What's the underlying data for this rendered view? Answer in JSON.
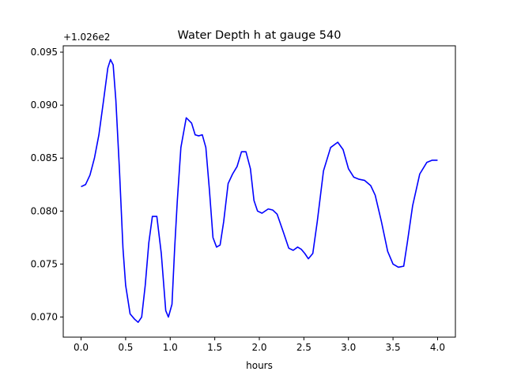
{
  "chart_data": {
    "type": "line",
    "title": "Water Depth h at gauge 540",
    "xlabel": "hours",
    "ylabel": "",
    "y_offset_label": "+1.026e2",
    "y_offset": 102.6,
    "xlim": [
      -0.2,
      4.2
    ],
    "ylim": [
      0.0681,
      0.0956
    ],
    "xticks": [
      0.0,
      0.5,
      1.0,
      1.5,
      2.0,
      2.5,
      3.0,
      3.5,
      4.0
    ],
    "xtick_labels": [
      "0.0",
      "0.5",
      "1.0",
      "1.5",
      "2.0",
      "2.5",
      "3.0",
      "3.5",
      "4.0"
    ],
    "yticks": [
      0.07,
      0.075,
      0.08,
      0.085,
      0.09,
      0.095
    ],
    "ytick_labels": [
      "0.070",
      "0.075",
      "0.080",
      "0.085",
      "0.090",
      "0.095"
    ],
    "grid": false,
    "series_color": "#0000ff",
    "series": [
      {
        "x": [
          0.0,
          0.05,
          0.1,
          0.15,
          0.2,
          0.25,
          0.3,
          0.33,
          0.36,
          0.39,
          0.43,
          0.47,
          0.5,
          0.55,
          0.6,
          0.64,
          0.68,
          0.72,
          0.76,
          0.8,
          0.85,
          0.9,
          0.95,
          0.98,
          1.02,
          1.05,
          1.08,
          1.12,
          1.18,
          1.24,
          1.28,
          1.32,
          1.36,
          1.4,
          1.44,
          1.48,
          1.52,
          1.56,
          1.6,
          1.65,
          1.7,
          1.75,
          1.8,
          1.85,
          1.9,
          1.94,
          1.98,
          2.03,
          2.1,
          2.15,
          2.2,
          2.27,
          2.33,
          2.38,
          2.43,
          2.47,
          2.51,
          2.55,
          2.6,
          2.65,
          2.72,
          2.8,
          2.88,
          2.94,
          3.0,
          3.06,
          3.12,
          3.18,
          3.25,
          3.3,
          3.37,
          3.44,
          3.5,
          3.56,
          3.62,
          3.66,
          3.72,
          3.8,
          3.88,
          3.94,
          4.0
        ],
        "y": [
          0.0823,
          0.0825,
          0.0834,
          0.085,
          0.0872,
          0.0903,
          0.0935,
          0.0943,
          0.0938,
          0.0905,
          0.084,
          0.0765,
          0.073,
          0.0703,
          0.0698,
          0.0695,
          0.07,
          0.073,
          0.077,
          0.0795,
          0.0795,
          0.076,
          0.0706,
          0.07,
          0.0712,
          0.0765,
          0.081,
          0.086,
          0.0888,
          0.0883,
          0.0872,
          0.0871,
          0.0872,
          0.086,
          0.082,
          0.0775,
          0.0766,
          0.0768,
          0.079,
          0.0826,
          0.0835,
          0.0842,
          0.0856,
          0.0856,
          0.084,
          0.081,
          0.08,
          0.0798,
          0.0802,
          0.0801,
          0.0797,
          0.078,
          0.0765,
          0.0763,
          0.0766,
          0.0764,
          0.076,
          0.0755,
          0.076,
          0.079,
          0.0838,
          0.086,
          0.0865,
          0.0858,
          0.084,
          0.0832,
          0.083,
          0.0829,
          0.0824,
          0.0815,
          0.079,
          0.0762,
          0.075,
          0.0747,
          0.0748,
          0.077,
          0.0805,
          0.0835,
          0.0846,
          0.0848,
          0.0848
        ]
      }
    ]
  }
}
